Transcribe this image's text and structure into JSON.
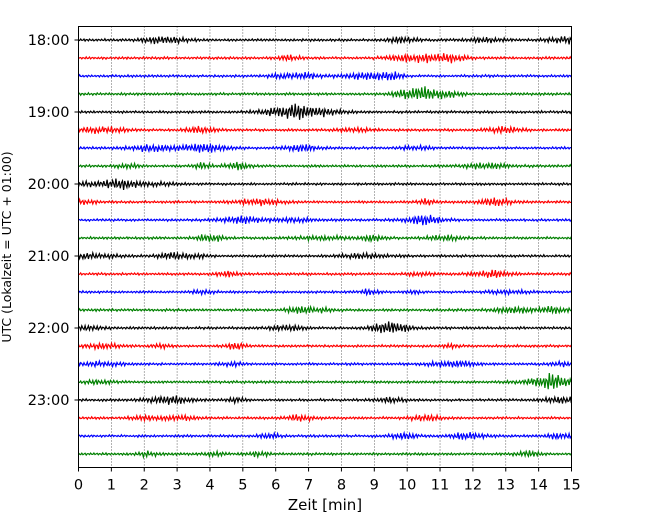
{
  "chart_data": {
    "type": "line",
    "title": "",
    "xlabel": "Zeit  [min]",
    "ylabel": "UTC (Lokalzeit = UTC + 01:00)",
    "xlim": [
      0,
      15
    ],
    "x_ticks": [
      0,
      1,
      2,
      3,
      4,
      5,
      6,
      7,
      8,
      9,
      10,
      11,
      12,
      13,
      14,
      15
    ],
    "x_tick_labels": [
      "0",
      "1",
      "2",
      "3",
      "4",
      "5",
      "6",
      "7",
      "8",
      "9",
      "10",
      "11",
      "12",
      "13",
      "14",
      "15"
    ],
    "y_tick_labels": [
      "18:00",
      "19:00",
      "20:00",
      "21:00",
      "22:00",
      "23:00"
    ],
    "y_tick_hours": [
      0,
      1,
      2,
      3,
      4,
      5
    ],
    "trace_interval_minutes": 15,
    "trace_start": "18:00",
    "trace_count": 24,
    "colors": [
      "#000000",
      "#ff0000",
      "#0000ff",
      "#008000"
    ],
    "grid": "vertical dotted lines at each minute",
    "legend": "none"
  }
}
